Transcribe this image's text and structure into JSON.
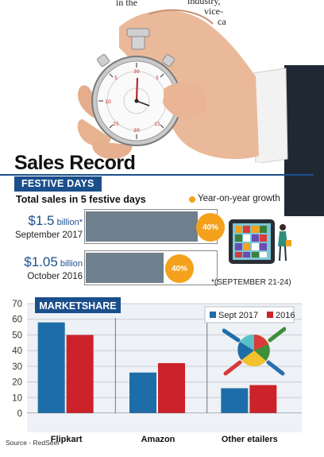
{
  "top_fragments": [
    "in the",
    "industry,",
    "vice-",
    "ca"
  ],
  "title": "Sales Record",
  "festive": {
    "pill": "FESTIVE DAYS",
    "subtitle": "Total sales in 5 festive days",
    "legend": "Year-on-year growth",
    "rows": [
      {
        "amount": "$1.5",
        "unit": "billion",
        "mark": "*",
        "period": "September 2017",
        "bar_fraction": 0.86,
        "growth": "40%"
      },
      {
        "amount": "$1.05",
        "unit": "billion",
        "mark": "",
        "period": "October 2016",
        "bar_fraction": 0.6,
        "growth": "40%"
      }
    ],
    "footnote": "*(SEPTEMBER 21-24)"
  },
  "colors": {
    "brand": "#1b4f8c",
    "accent": "#f4a11c",
    "bar_grey": "#6e7f8e",
    "sept2017": "#1d6ea8",
    "y2016": "#cc2229"
  },
  "icons": [
    "stopwatch-hand-icon",
    "tablet-shopping-icon",
    "shopper-figure-icon",
    "pie-hands-icon"
  ],
  "chart_data": {
    "type": "bar",
    "title": "MARKETSHARE",
    "categories": [
      "Flipkart",
      "Amazon",
      "Other etailers"
    ],
    "series": [
      {
        "name": "Sept 2017",
        "values": [
          58,
          26,
          16
        ]
      },
      {
        "name": "2016",
        "values": [
          50,
          32,
          18
        ]
      }
    ],
    "yticks": [
      0,
      10,
      20,
      30,
      40,
      50,
      60,
      70
    ],
    "ylim": [
      0,
      70
    ],
    "grid": true,
    "legend_position": "top-right",
    "source": "Source - RedSeer"
  }
}
